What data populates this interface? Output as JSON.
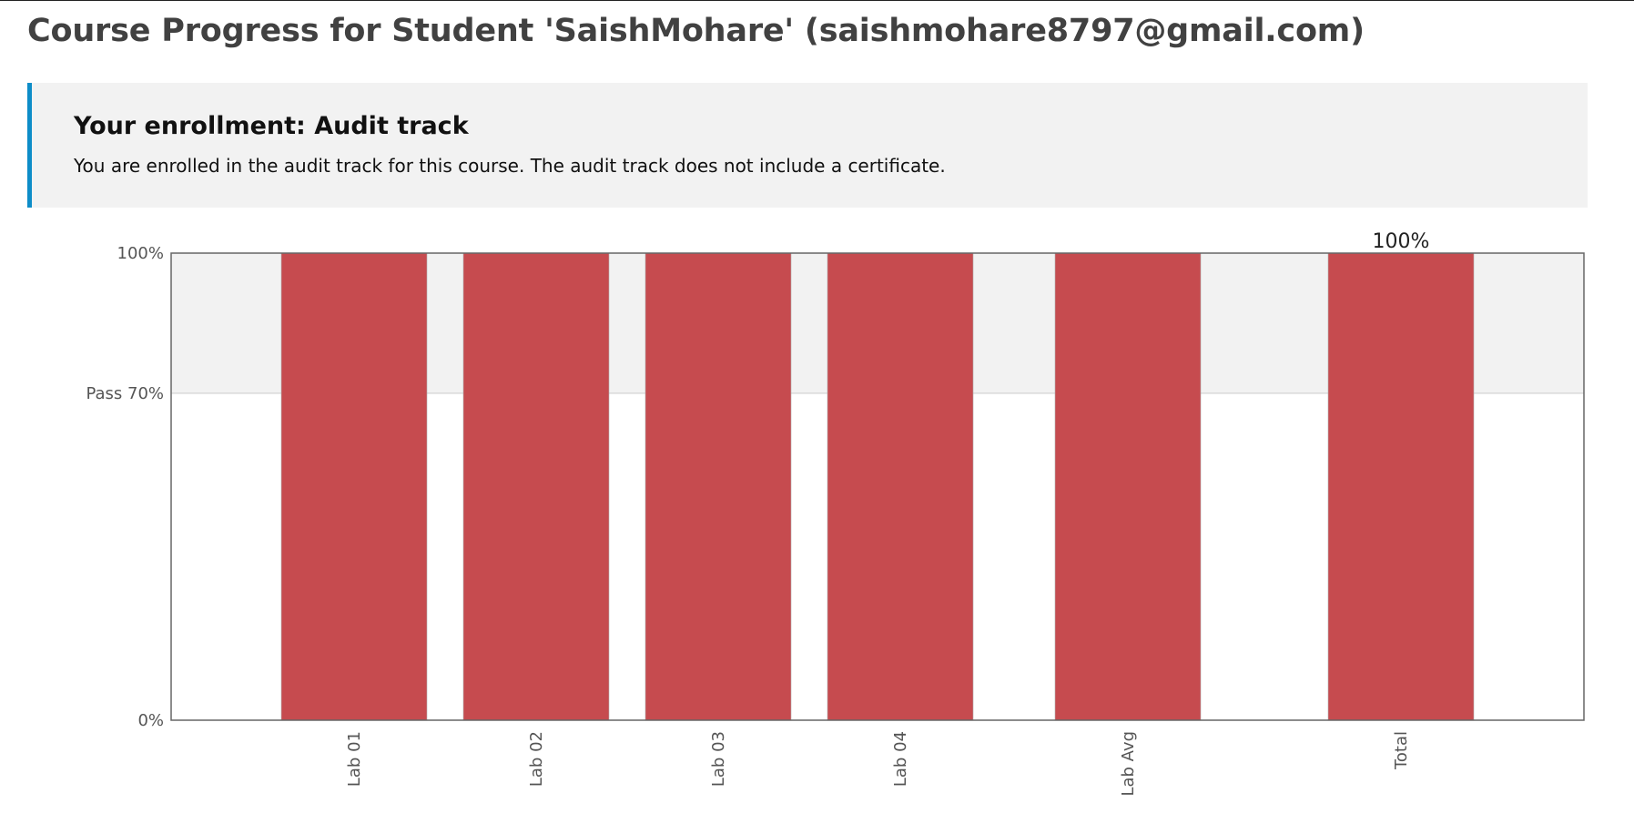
{
  "page": {
    "title": "Course Progress for Student 'SaishMohare' (saishmohare8797@gmail.com)"
  },
  "enrollment": {
    "title": "Your enrollment: Audit track",
    "message": "You are enrolled in the audit track for this course. The audit track does not include a certificate."
  },
  "chart_data": {
    "type": "bar",
    "categories": [
      "Lab 01",
      "Lab 02",
      "Lab 03",
      "Lab 04",
      "Lab Avg",
      "Total"
    ],
    "values": [
      100,
      100,
      100,
      100,
      100,
      100
    ],
    "ylim": [
      0,
      100
    ],
    "y_ticks": [
      {
        "value": 100,
        "label": "100%"
      },
      {
        "value": 70,
        "label": "Pass 70%"
      },
      {
        "value": 0,
        "label": "0%"
      }
    ],
    "pass_threshold": 70,
    "total_label": "100%",
    "bar_color": "#c64b4f",
    "above_pass_band_color": "#f2f2f2"
  }
}
